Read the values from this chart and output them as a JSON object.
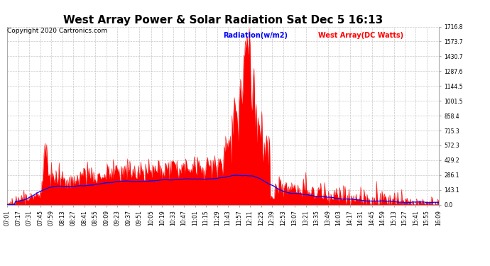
{
  "title": "West Array Power & Solar Radiation Sat Dec 5 16:13",
  "copyright": "Copyright 2020 Cartronics.com",
  "legend_radiation": "Radiation(w/m2)",
  "legend_west_array": "West Array(DC Watts)",
  "legend_radiation_color": "blue",
  "legend_west_array_color": "red",
  "ylabel_right_values": [
    0.0,
    143.1,
    286.1,
    429.2,
    572.3,
    715.3,
    858.4,
    1001.5,
    1144.5,
    1287.6,
    1430.7,
    1573.7,
    1716.8
  ],
  "ymax": 1716.8,
  "ymin": 0.0,
  "background_color": "#ffffff",
  "plot_background": "#ffffff",
  "grid_color": "#b0b0b0",
  "title_fontsize": 11,
  "copyright_fontsize": 6.5,
  "tick_fontsize": 5.5,
  "time_labels": [
    "07:01",
    "07:17",
    "07:31",
    "07:45",
    "07:59",
    "08:13",
    "08:27",
    "08:41",
    "08:55",
    "09:09",
    "09:23",
    "09:37",
    "09:51",
    "10:05",
    "10:19",
    "10:33",
    "10:47",
    "11:01",
    "11:15",
    "11:29",
    "11:43",
    "11:57",
    "12:11",
    "12:25",
    "12:39",
    "12:53",
    "13:07",
    "13:21",
    "13:35",
    "13:49",
    "14:03",
    "14:17",
    "14:31",
    "14:45",
    "14:59",
    "15:13",
    "15:27",
    "15:41",
    "15:55",
    "16:09"
  ]
}
